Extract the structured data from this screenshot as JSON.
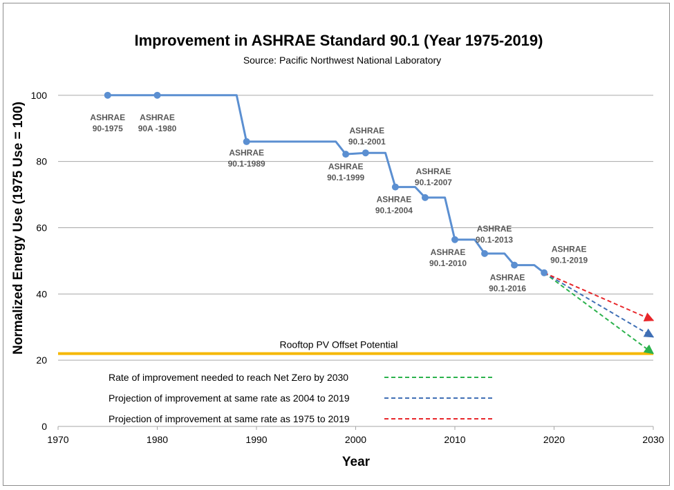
{
  "chart_data": {
    "type": "line",
    "title": "Improvement in ASHRAE Standard 90.1 (Year 1975-2019)",
    "subtitle": "Source: Pacific Northwest National Laboratory",
    "xlabel": "Year",
    "ylabel": "Normalized Energy Use  (1975 Use = 100)",
    "xlim": [
      1970,
      2030
    ],
    "ylim": [
      0,
      100
    ],
    "xticks": [
      1970,
      1980,
      1990,
      2000,
      2010,
      2020,
      2030
    ],
    "yticks": [
      0,
      20,
      40,
      60,
      80,
      100
    ],
    "grid": "horizontal",
    "series": [
      {
        "style": "step-line",
        "color": "#5b8fd1",
        "points": [
          {
            "x": 1975,
            "y": 100
          },
          {
            "x": 1988,
            "y": 100
          },
          {
            "x": 1989,
            "y": 86
          },
          {
            "x": 1998,
            "y": 86
          },
          {
            "x": 1999,
            "y": 82.2
          },
          {
            "x": 2001,
            "y": 82.6
          },
          {
            "x": 2003,
            "y": 82.6
          },
          {
            "x": 2004,
            "y": 72.3
          },
          {
            "x": 2006,
            "y": 72.3
          },
          {
            "x": 2007,
            "y": 69.1
          },
          {
            "x": 2009,
            "y": 69.1
          },
          {
            "x": 2010,
            "y": 56.4
          },
          {
            "x": 2012,
            "y": 56.4
          },
          {
            "x": 2013,
            "y": 52.2
          },
          {
            "x": 2015,
            "y": 52.2
          },
          {
            "x": 2016,
            "y": 48.7
          },
          {
            "x": 2018,
            "y": 48.7
          },
          {
            "x": 2019,
            "y": 46.4
          }
        ],
        "markers": [
          {
            "x": 1975,
            "y": 100,
            "label": [
              "ASHRAE",
              "90-1975"
            ]
          },
          {
            "x": 1980,
            "y": 100,
            "label": [
              "ASHRAE",
              "90A -1980"
            ]
          },
          {
            "x": 1989,
            "y": 86,
            "label": [
              "ASHRAE",
              "90.1-1989"
            ]
          },
          {
            "x": 1999,
            "y": 82.2,
            "label": [
              "ASHRAE",
              "90.1-1999"
            ]
          },
          {
            "x": 2001,
            "y": 82.6,
            "label": [
              "ASHRAE",
              "90.1-2001"
            ]
          },
          {
            "x": 2004,
            "y": 72.3,
            "label": [
              "ASHRAE",
              "90.1-2004"
            ]
          },
          {
            "x": 2007,
            "y": 69.1,
            "label": [
              "ASHRAE",
              "90.1-2007"
            ]
          },
          {
            "x": 2010,
            "y": 56.4,
            "label": [
              "ASHRAE",
              "90.1-2010"
            ]
          },
          {
            "x": 2013,
            "y": 52.2,
            "label": [
              "ASHRAE",
              "90.1-2013"
            ]
          },
          {
            "x": 2016,
            "y": 48.7,
            "label": [
              "ASHRAE",
              "90.1-2016"
            ]
          },
          {
            "x": 2019,
            "y": 46.4,
            "label": [
              "ASHRAE",
              "90.1-2019"
            ]
          }
        ]
      }
    ],
    "projections": [
      {
        "name": "Rate of improvement needed to reach Net Zero by 2030",
        "color": "#2bb24c",
        "from": {
          "x": 2019,
          "y": 46.4
        },
        "to": {
          "x": 2030,
          "y": 22
        }
      },
      {
        "name": "Projection of improvement at same rate as 2004 to 2019",
        "color": "#3f6fb5",
        "from": {
          "x": 2019,
          "y": 46.4
        },
        "to": {
          "x": 2030,
          "y": 27
        }
      },
      {
        "name": "Projection of improvement at same rate as 1975 to 2019",
        "color": "#e8262a",
        "from": {
          "x": 2019,
          "y": 46.4
        },
        "to": {
          "x": 2030,
          "y": 32
        }
      }
    ],
    "reference_line": {
      "label": "Rooftop PV Offset Potential",
      "y": 22,
      "color": "#f5b800"
    },
    "legend_placement": "bottom-left-inside"
  }
}
